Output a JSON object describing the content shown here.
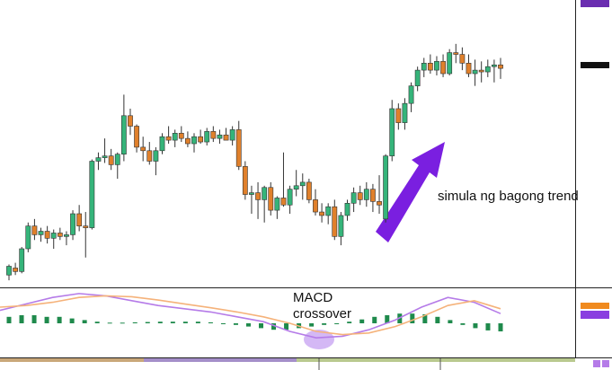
{
  "chart_data": {
    "type": "candlestick",
    "ylim": [
      0,
      320
    ],
    "up_color": "#35b47a",
    "down_color": "#e0802b",
    "trend_note": "simula ng bagong trend",
    "macd_note": [
      "MACD",
      "crossover"
    ],
    "ohlc": [
      [
        10,
        22,
        4,
        20
      ],
      [
        18,
        24,
        10,
        14
      ],
      [
        14,
        42,
        12,
        40
      ],
      [
        40,
        70,
        36,
        66
      ],
      [
        66,
        74,
        50,
        56
      ],
      [
        56,
        64,
        48,
        60
      ],
      [
        60,
        66,
        46,
        52
      ],
      [
        52,
        62,
        40,
        58
      ],
      [
        58,
        64,
        50,
        54
      ],
      [
        54,
        60,
        44,
        56
      ],
      [
        56,
        84,
        50,
        80
      ],
      [
        80,
        90,
        60,
        66
      ],
      [
        66,
        82,
        30,
        64
      ],
      [
        64,
        142,
        62,
        140
      ],
      [
        140,
        150,
        130,
        144
      ],
      [
        144,
        166,
        138,
        146
      ],
      [
        146,
        154,
        130,
        136
      ],
      [
        136,
        150,
        120,
        148
      ],
      [
        148,
        216,
        140,
        192
      ],
      [
        192,
        200,
        170,
        180
      ],
      [
        180,
        182,
        150,
        156
      ],
      [
        156,
        168,
        140,
        152
      ],
      [
        152,
        162,
        136,
        140
      ],
      [
        140,
        156,
        124,
        152
      ],
      [
        152,
        172,
        148,
        168
      ],
      [
        168,
        180,
        160,
        164
      ],
      [
        164,
        176,
        156,
        172
      ],
      [
        172,
        180,
        162,
        166
      ],
      [
        166,
        174,
        156,
        160
      ],
      [
        160,
        172,
        150,
        168
      ],
      [
        168,
        176,
        160,
        162
      ],
      [
        162,
        178,
        158,
        174
      ],
      [
        174,
        180,
        162,
        166
      ],
      [
        166,
        176,
        160,
        170
      ],
      [
        170,
        178,
        164,
        164
      ],
      [
        164,
        180,
        158,
        176
      ],
      [
        176,
        186,
        130,
        134
      ],
      [
        134,
        140,
        96,
        102
      ],
      [
        102,
        112,
        80,
        104
      ],
      [
        104,
        116,
        74,
        96
      ],
      [
        96,
        112,
        70,
        110
      ],
      [
        110,
        116,
        78,
        84
      ],
      [
        84,
        100,
        74,
        98
      ],
      [
        98,
        150,
        88,
        90
      ],
      [
        90,
        112,
        80,
        108
      ],
      [
        108,
        130,
        100,
        112
      ],
      [
        112,
        126,
        96,
        116
      ],
      [
        116,
        120,
        92,
        96
      ],
      [
        96,
        108,
        78,
        82
      ],
      [
        82,
        92,
        70,
        78
      ],
      [
        78,
        92,
        68,
        88
      ],
      [
        88,
        96,
        50,
        54
      ],
      [
        54,
        82,
        44,
        78
      ],
      [
        78,
        96,
        72,
        92
      ],
      [
        92,
        110,
        82,
        104
      ],
      [
        104,
        112,
        90,
        96
      ],
      [
        96,
        116,
        88,
        108
      ],
      [
        108,
        114,
        82,
        94
      ],
      [
        94,
        124,
        80,
        90
      ],
      [
        74,
        148,
        70,
        146
      ],
      [
        146,
        210,
        140,
        200
      ],
      [
        200,
        206,
        176,
        184
      ],
      [
        184,
        212,
        176,
        206
      ],
      [
        206,
        230,
        196,
        226
      ],
      [
        226,
        248,
        220,
        244
      ],
      [
        244,
        258,
        236,
        252
      ],
      [
        252,
        262,
        240,
        244
      ],
      [
        244,
        260,
        238,
        254
      ],
      [
        254,
        262,
        236,
        240
      ],
      [
        240,
        268,
        238,
        264
      ],
      [
        264,
        274,
        252,
        262
      ],
      [
        262,
        270,
        244,
        252
      ],
      [
        252,
        262,
        236,
        240
      ],
      [
        240,
        256,
        226,
        244
      ],
      [
        244,
        254,
        230,
        242
      ],
      [
        242,
        256,
        236,
        248
      ],
      [
        248,
        256,
        230,
        250
      ],
      [
        250,
        258,
        234,
        246
      ]
    ],
    "macd": {
      "ylim": [
        -1,
        1
      ],
      "series": [
        {
          "color": "#b57be8",
          "values": [
            0.4,
            0.6,
            0.8,
            0.92,
            0.85,
            0.7,
            0.55,
            0.45,
            0.35,
            0.2,
            0.05,
            -0.25,
            -0.45,
            -0.4,
            -0.2,
            0.1,
            0.5,
            0.8,
            0.65,
            0.3
          ]
        },
        {
          "color": "#f5b27a",
          "values": [
            0.5,
            0.55,
            0.65,
            0.8,
            0.85,
            0.82,
            0.72,
            0.6,
            0.48,
            0.35,
            0.2,
            0,
            -0.25,
            -0.35,
            -0.3,
            -0.1,
            0.2,
            0.55,
            0.7,
            0.45
          ]
        }
      ],
      "histogram_color": "#1f8a4c",
      "histogram": [
        0.2,
        0.25,
        0.25,
        0.2,
        0.2,
        0.15,
        0.1,
        0.05,
        0.02,
        0.02,
        0.03,
        0.04,
        0.05,
        0.05,
        0.05,
        0.05,
        0.03,
        0,
        -0.05,
        -0.1,
        -0.15,
        -0.2,
        -0.2,
        -0.15,
        -0.1,
        -0.05,
        0,
        0.05,
        0.12,
        0.2,
        0.25,
        0.3,
        0.3,
        0.28,
        0.2,
        0.1,
        -0.05,
        -0.15,
        -0.22,
        -0.25
      ]
    }
  }
}
